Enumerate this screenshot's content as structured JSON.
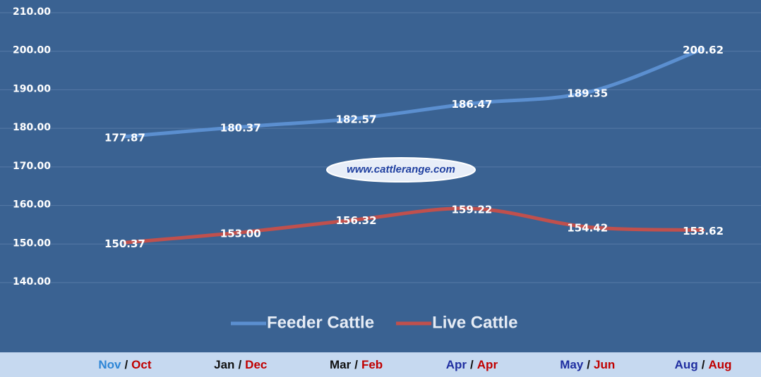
{
  "chart_data": {
    "type": "line",
    "categories": [
      {
        "feeder": "Nov",
        "live": "Oct"
      },
      {
        "feeder": "Jan",
        "live": "Dec"
      },
      {
        "feeder": "Mar",
        "live": "Feb"
      },
      {
        "feeder": "Apr",
        "live": "Apr"
      },
      {
        "feeder": "May",
        "live": "Jun"
      },
      {
        "feeder": "Aug",
        "live": "Aug"
      }
    ],
    "separator": "/",
    "category_colors": {
      "feeder": [
        "#2e86d6",
        "#111111",
        "#111111",
        "#1f2ea0",
        "#1f2ea0",
        "#1f2ea0"
      ],
      "live": "#c00000",
      "separator": "#111111"
    },
    "series": [
      {
        "name": "Feeder Cattle",
        "color": "#5b8fd0",
        "values": [
          177.87,
          180.37,
          182.57,
          186.47,
          189.35,
          200.62
        ],
        "value_labels": [
          "177.87",
          "180.37",
          "182.57",
          "186.47",
          "189.35",
          "200.62"
        ]
      },
      {
        "name": "Live Cattle",
        "color": "#c0504d",
        "values": [
          150.37,
          153.0,
          156.32,
          159.22,
          154.42,
          153.62
        ],
        "value_labels": [
          "150.37",
          "153.00",
          "156.32",
          "159.22",
          "154.42",
          "153.62"
        ]
      }
    ],
    "ylim": [
      140,
      210
    ],
    "yticks": [
      {
        "value": 140,
        "label": "140.00"
      },
      {
        "value": 150,
        "label": "150.00"
      },
      {
        "value": 160,
        "label": "160.00"
      },
      {
        "value": 170,
        "label": "170.00"
      },
      {
        "value": 180,
        "label": "180.00"
      },
      {
        "value": 190,
        "label": "190.00"
      },
      {
        "value": 200,
        "label": "200.00"
      },
      {
        "value": 210,
        "label": "210.00"
      }
    ],
    "grid": true,
    "legend": "bottom",
    "watermark": "www.cattlerange.com"
  }
}
